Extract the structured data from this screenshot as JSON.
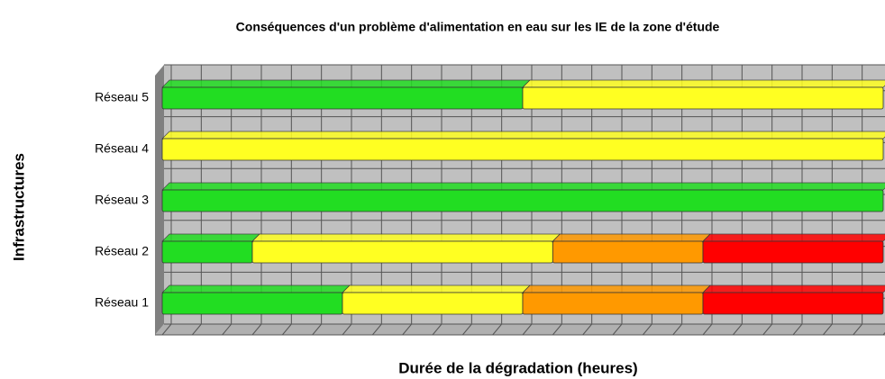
{
  "chart_data": {
    "type": "stacked-barh",
    "title": "Conséquences d'un problème d'alimentation en eau sur les IE de la zone d'étude",
    "xlabel": "Durée de la dégradation (heures)",
    "ylabel": "Infrastructures",
    "categories": [
      "Réseau 1",
      "Réseau 2",
      "Réseau 3",
      "Réseau 4",
      "Réseau 5"
    ],
    "series": [
      {
        "color": "#22dd22",
        "values": [
          6,
          3,
          24,
          null,
          12
        ]
      },
      {
        "color": "#ffff22",
        "values": [
          6,
          10,
          null,
          24,
          12
        ]
      },
      {
        "color": "#ff9900",
        "values": [
          6,
          5,
          null,
          null,
          null
        ]
      },
      {
        "color": "#ff0000",
        "values": [
          6,
          6,
          null,
          null,
          null
        ]
      }
    ],
    "xlim": [
      0,
      24
    ],
    "xticks": [
      0,
      1,
      2,
      3,
      4,
      5,
      6,
      7,
      8,
      9,
      10,
      11,
      12,
      13,
      14,
      15,
      16,
      17,
      18,
      19,
      20,
      21,
      22,
      23,
      24
    ],
    "grid": true
  }
}
